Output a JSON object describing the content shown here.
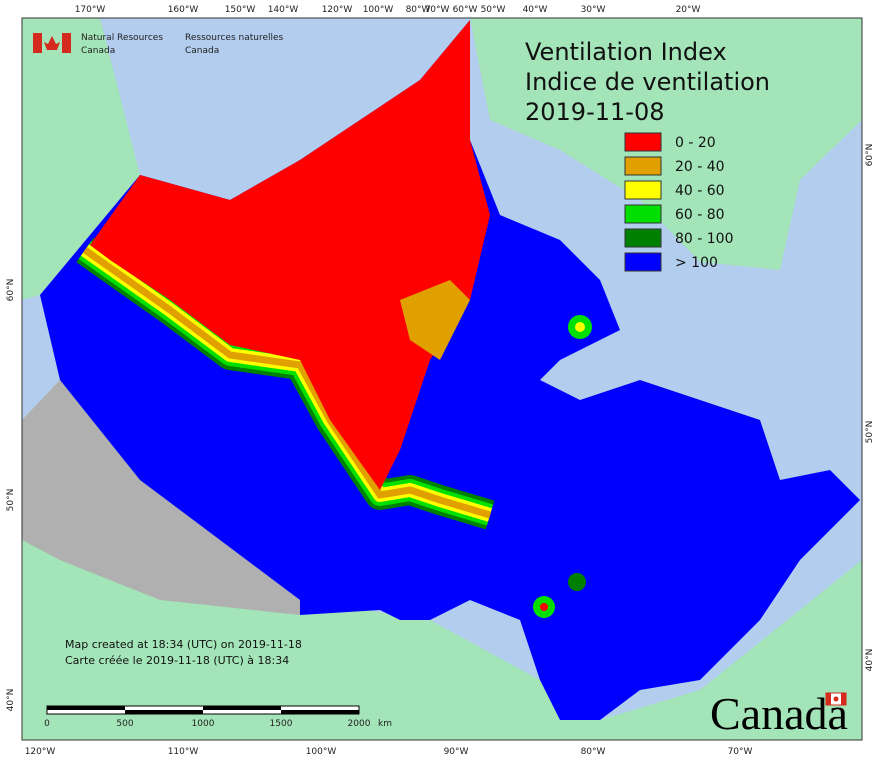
{
  "header": {
    "agency_en": [
      "Natural Resources",
      "Canada"
    ],
    "agency_fr": [
      "Ressources naturelles",
      "Canada"
    ]
  },
  "title": {
    "en": "Ventilation Index",
    "fr": "Indice de ventilation",
    "date": "2019-11-08"
  },
  "legend": [
    {
      "label": "0 - 20",
      "color": "#ff0000"
    },
    {
      "label": "20 - 40",
      "color": "#e0a000"
    },
    {
      "label": "40 - 60",
      "color": "#ffff00"
    },
    {
      "label": "60 - 80",
      "color": "#00e000"
    },
    {
      "label": "80 - 100",
      "color": "#008000"
    },
    {
      "label": "> 100",
      "color": "#0000ff"
    }
  ],
  "graticule": {
    "top": [
      "170°W",
      "160°W",
      "150°W",
      "140°W",
      "120°W",
      "100°W",
      "80°W",
      "70°W",
      "60°W",
      "50°W",
      "40°W",
      "30°W",
      "20°W"
    ],
    "bottom": [
      "120°W",
      "110°W",
      "100°W",
      "90°W",
      "80°W",
      "70°W"
    ],
    "left": [
      "60°N",
      "50°N",
      "40°N"
    ],
    "right": [
      "60°N",
      "50°N",
      "40°N"
    ]
  },
  "footer": {
    "created_en": "Map created at 18:34 (UTC) on 2019-11-18",
    "created_fr": "Carte créée le 2019-11-18 (UTC) à 18:34"
  },
  "scale": {
    "ticks": [
      "0",
      "500",
      "1000",
      "1500",
      "2000"
    ],
    "unit": "km"
  },
  "wordmark": "Canada"
}
